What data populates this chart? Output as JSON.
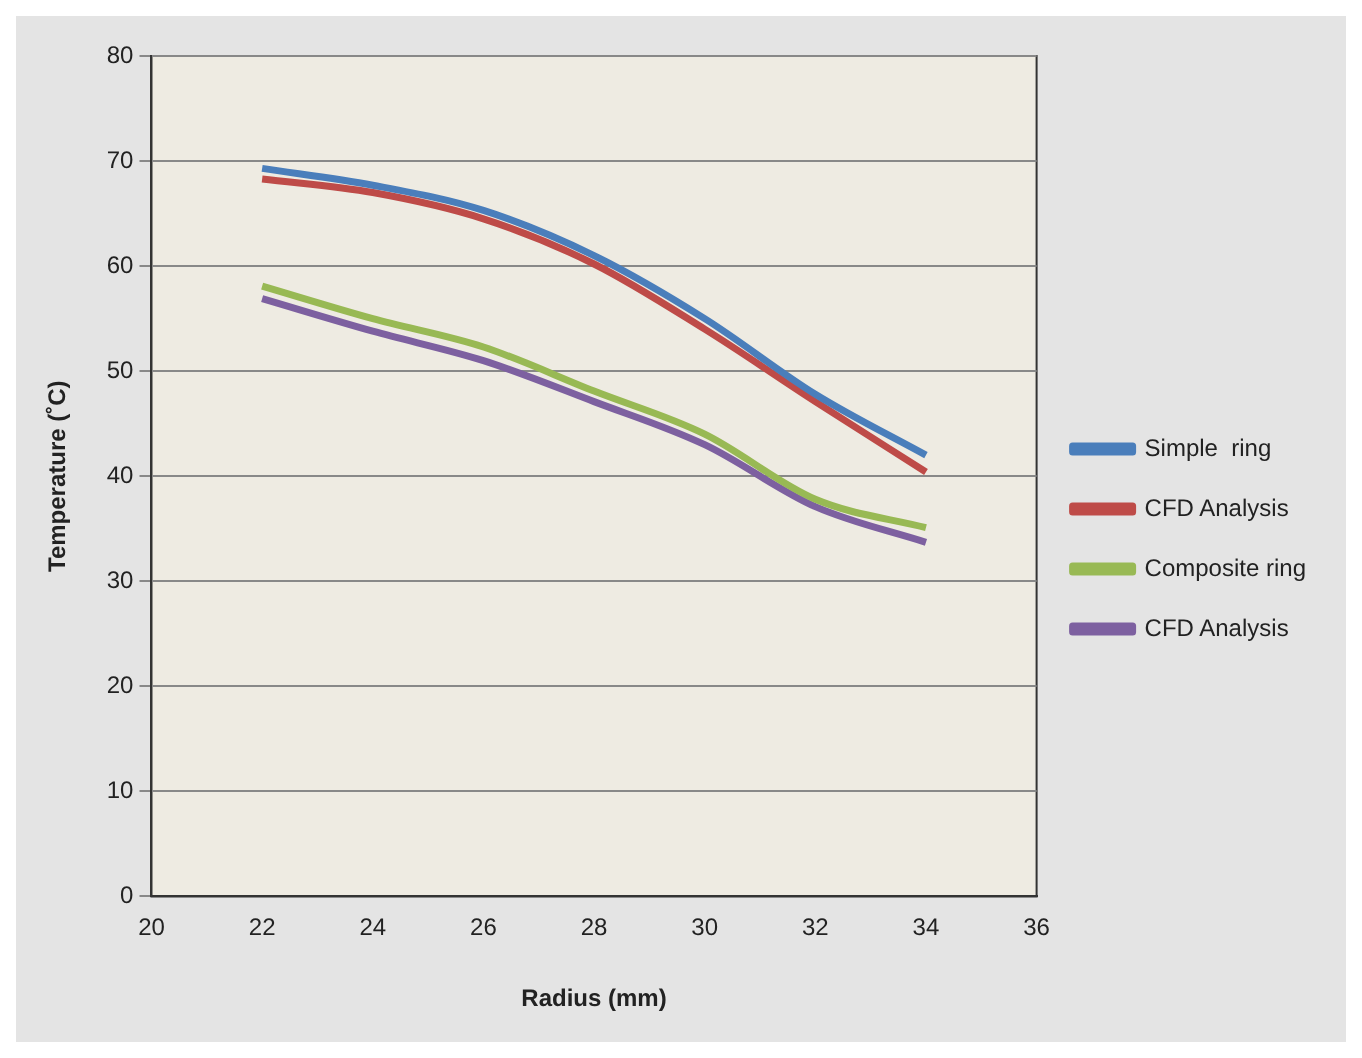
{
  "chart_data": {
    "type": "line",
    "xlabel": "Radius (mm)",
    "ylabel": "Temperature (˚C)",
    "x": [
      22,
      24,
      26,
      28,
      30,
      32,
      34
    ],
    "series": [
      {
        "name": "Simple  ring",
        "color": "#4a7ebb",
        "values": [
          69.3,
          67.7,
          65.3,
          61,
          55,
          47.8,
          42
        ]
      },
      {
        "name": "CFD Analysis",
        "color": "#be4b48",
        "values": [
          68.3,
          67,
          64.5,
          60.2,
          54,
          47.1,
          40.4
        ]
      },
      {
        "name": "Composite ring",
        "color": "#98b954",
        "values": [
          58.1,
          55,
          52.3,
          48.1,
          44,
          37.8,
          35.1
        ]
      },
      {
        "name": "CFD Analysis",
        "color": "#7d60a0",
        "values": [
          56.9,
          53.8,
          51,
          47.1,
          43,
          37.1,
          33.7
        ]
      }
    ],
    "xlim": [
      20,
      36
    ],
    "xticks": [
      20,
      22,
      24,
      26,
      28,
      30,
      32,
      34,
      36
    ],
    "ylim": [
      0,
      80
    ],
    "yticks": [
      0,
      10,
      20,
      30,
      40,
      50,
      60,
      70,
      80
    ],
    "grid": "y",
    "legend": "right",
    "marker": "none",
    "line_style": "solid"
  }
}
